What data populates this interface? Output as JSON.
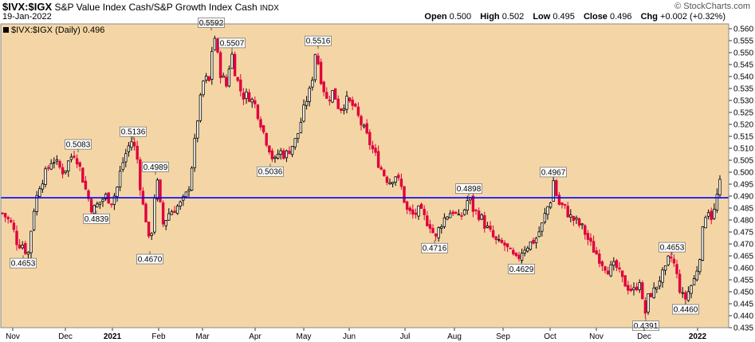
{
  "header": {
    "symbol": "$IVX:$IGX",
    "description": "S&P Value Index Cash/S&P Growth Index Cash",
    "exchange": "INDX",
    "date": "19-Jan-2022",
    "brand": "© StockCharts.com",
    "open_label": "Open",
    "open": "0.500",
    "high_label": "High",
    "high": "0.502",
    "low_label": "Low",
    "low": "0.495",
    "close_label": "Close",
    "close": "0.496",
    "chg_label": "Chg",
    "chg": "+0.002 (+0.32%)"
  },
  "legend": {
    "text": "$IVX:$IGX (Daily) 0.496",
    "swatch_color": "#000000"
  },
  "colors": {
    "background": "#f4d6a6",
    "up": "#000000",
    "down": "#e0003c",
    "hline": "#0000ff"
  },
  "chart_data": {
    "type": "candlestick",
    "title": "$IVX:$IGX (Daily)",
    "ylim": [
      0.435,
      0.562
    ],
    "y_ticks": [
      "0.560",
      "0.555",
      "0.550",
      "0.545",
      "0.540",
      "0.535",
      "0.530",
      "0.525",
      "0.520",
      "0.515",
      "0.510",
      "0.505",
      "0.500",
      "0.495",
      "0.490",
      "0.485",
      "0.480",
      "0.475",
      "0.470",
      "0.465",
      "0.460",
      "0.455",
      "0.450",
      "0.445",
      "0.440",
      "0.435"
    ],
    "x_labels": [
      "Nov",
      "Dec",
      "2021",
      "Feb",
      "Mar",
      "Apr",
      "May",
      "Jun",
      "Jul",
      "Aug",
      "Sep",
      "Oct",
      "Nov",
      "Dec",
      "2022"
    ],
    "horizontal_line": 0.4893,
    "price_path": [
      [
        0,
        0.484
      ],
      [
        8,
        0.481
      ],
      [
        15,
        0.478
      ],
      [
        22,
        0.47
      ],
      [
        28,
        0.47
      ],
      [
        35,
        0.4653
      ],
      [
        42,
        0.484
      ],
      [
        50,
        0.495
      ],
      [
        58,
        0.5
      ],
      [
        66,
        0.506
      ],
      [
        72,
        0.503
      ],
      [
        80,
        0.5
      ],
      [
        88,
        0.506
      ],
      [
        94,
        0.5083
      ],
      [
        100,
        0.502
      ],
      [
        108,
        0.492
      ],
      [
        116,
        0.4839
      ],
      [
        124,
        0.487
      ],
      [
        132,
        0.49
      ],
      [
        140,
        0.488
      ],
      [
        146,
        0.492
      ],
      [
        152,
        0.502
      ],
      [
        160,
        0.51
      ],
      [
        166,
        0.5136
      ],
      [
        172,
        0.506
      ],
      [
        178,
        0.488
      ],
      [
        184,
        0.479
      ],
      [
        188,
        0.467
      ],
      [
        196,
        0.4989
      ],
      [
        204,
        0.478
      ],
      [
        212,
        0.483
      ],
      [
        220,
        0.485
      ],
      [
        228,
        0.487
      ],
      [
        236,
        0.492
      ],
      [
        242,
        0.506
      ],
      [
        248,
        0.523
      ],
      [
        256,
        0.54
      ],
      [
        262,
        0.537
      ],
      [
        268,
        0.5592
      ],
      [
        276,
        0.542
      ],
      [
        284,
        0.536
      ],
      [
        290,
        0.5507
      ],
      [
        296,
        0.54
      ],
      [
        304,
        0.532
      ],
      [
        312,
        0.532
      ],
      [
        320,
        0.528
      ],
      [
        326,
        0.522
      ],
      [
        332,
        0.515
      ],
      [
        338,
        0.51
      ],
      [
        344,
        0.5036
      ],
      [
        350,
        0.509
      ],
      [
        358,
        0.507
      ],
      [
        366,
        0.511
      ],
      [
        372,
        0.514
      ],
      [
        378,
        0.522
      ],
      [
        384,
        0.53
      ],
      [
        390,
        0.535
      ],
      [
        396,
        0.5516
      ],
      [
        402,
        0.54
      ],
      [
        410,
        0.53
      ],
      [
        418,
        0.534
      ],
      [
        426,
        0.526
      ],
      [
        434,
        0.53
      ],
      [
        442,
        0.528
      ],
      [
        448,
        0.524
      ],
      [
        456,
        0.518
      ],
      [
        464,
        0.512
      ],
      [
        472,
        0.506
      ],
      [
        480,
        0.5
      ],
      [
        488,
        0.496
      ],
      [
        496,
        0.499
      ],
      [
        504,
        0.493
      ],
      [
        510,
        0.484
      ],
      [
        518,
        0.482
      ],
      [
        526,
        0.484
      ],
      [
        534,
        0.48
      ],
      [
        540,
        0.478
      ],
      [
        546,
        0.4716
      ],
      [
        552,
        0.478
      ],
      [
        560,
        0.482
      ],
      [
        568,
        0.484
      ],
      [
        576,
        0.48
      ],
      [
        582,
        0.484
      ],
      [
        588,
        0.4898
      ],
      [
        594,
        0.484
      ],
      [
        602,
        0.482
      ],
      [
        608,
        0.478
      ],
      [
        616,
        0.474
      ],
      [
        624,
        0.47
      ],
      [
        632,
        0.47
      ],
      [
        640,
        0.466
      ],
      [
        648,
        0.4629
      ],
      [
        656,
        0.468
      ],
      [
        664,
        0.47
      ],
      [
        672,
        0.472
      ],
      [
        680,
        0.478
      ],
      [
        686,
        0.485
      ],
      [
        690,
        0.487
      ],
      [
        694,
        0.4967
      ],
      [
        700,
        0.487
      ],
      [
        708,
        0.485
      ],
      [
        716,
        0.481
      ],
      [
        724,
        0.479
      ],
      [
        732,
        0.476
      ],
      [
        740,
        0.47
      ],
      [
        748,
        0.466
      ],
      [
        756,
        0.462
      ],
      [
        764,
        0.459
      ],
      [
        772,
        0.461
      ],
      [
        780,
        0.455
      ],
      [
        788,
        0.452
      ],
      [
        796,
        0.45
      ],
      [
        802,
        0.456
      ],
      [
        808,
        0.4391
      ],
      [
        814,
        0.449
      ],
      [
        820,
        0.45
      ],
      [
        828,
        0.456
      ],
      [
        834,
        0.458
      ],
      [
        840,
        0.4653
      ],
      [
        846,
        0.461
      ],
      [
        852,
        0.452
      ],
      [
        858,
        0.446
      ],
      [
        866,
        0.452
      ],
      [
        872,
        0.456
      ],
      [
        878,
        0.466
      ],
      [
        884,
        0.482
      ],
      [
        888,
        0.485
      ],
      [
        894,
        0.48
      ],
      [
        898,
        0.488
      ],
      [
        902,
        0.494
      ],
      [
        906,
        0.498
      ]
    ],
    "annotations": [
      {
        "label": "0.4653",
        "value": 0.4653
      },
      {
        "label": "0.5083",
        "value": 0.5083
      },
      {
        "label": "0.4839",
        "value": 0.4839
      },
      {
        "label": "0.5136",
        "value": 0.5136
      },
      {
        "label": "0.4989",
        "value": 0.4989
      },
      {
        "label": "0.4670",
        "value": 0.467
      },
      {
        "label": "0.5592",
        "value": 0.5592
      },
      {
        "label": "0.5507",
        "value": 0.5507
      },
      {
        "label": "0.5036",
        "value": 0.5036
      },
      {
        "label": "0.5516",
        "value": 0.5516
      },
      {
        "label": "0.4716",
        "value": 0.4716
      },
      {
        "label": "0.4898",
        "value": 0.4898
      },
      {
        "label": "0.4629",
        "value": 0.4629
      },
      {
        "label": "0.4967",
        "value": 0.4967
      },
      {
        "label": "0.4391",
        "value": 0.4391
      },
      {
        "label": "0.4653",
        "value": 0.4653
      },
      {
        "label": "0.4460",
        "value": 0.446
      }
    ]
  }
}
